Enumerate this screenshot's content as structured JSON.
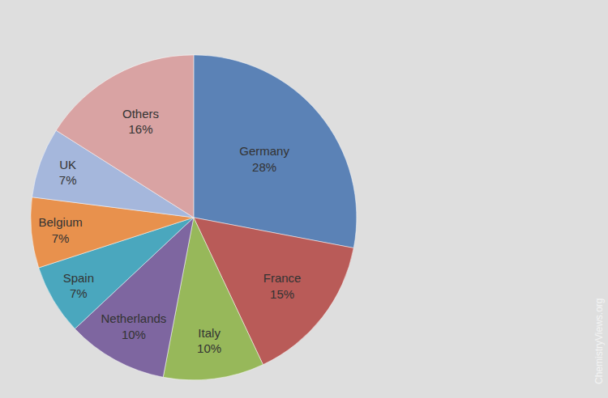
{
  "chart_data": {
    "type": "pie",
    "categories": [
      "Germany",
      "France",
      "Italy",
      "Netherlands",
      "Spain",
      "Belgium",
      "UK",
      "Others"
    ],
    "values": [
      28,
      15,
      10,
      10,
      7,
      7,
      7,
      16
    ],
    "value_labels": [
      "28%",
      "15%",
      "10%",
      "10%",
      "7%",
      "7%",
      "7%",
      "16%"
    ],
    "colors": [
      "#5b82b6",
      "#b95b58",
      "#97b85a",
      "#7e66a0",
      "#4aa7be",
      "#e8914d",
      "#a5b7dc",
      "#d9a3a3"
    ],
    "data_labels": true,
    "annotations": [
      "ChemistryViews.org"
    ]
  }
}
